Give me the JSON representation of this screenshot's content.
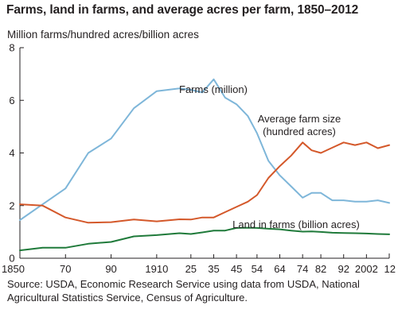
{
  "chart_data": {
    "type": "line",
    "title": "Farms, land in farms, and average acres per farm, 1850–2012",
    "ylabel": "Million farms/hundred acres/billion acres",
    "xlabel": "",
    "ylim": [
      0,
      8
    ],
    "yticks": [
      0,
      2,
      4,
      6,
      8
    ],
    "xlim": [
      1850,
      2012
    ],
    "x_tick_labels": [
      {
        "year": 1850,
        "label": "1850"
      },
      {
        "year": 1870,
        "label": "70"
      },
      {
        "year": 1890,
        "label": "90"
      },
      {
        "year": 1910,
        "label": "1910"
      },
      {
        "year": 1925,
        "label": "25"
      },
      {
        "year": 1935,
        "label": "35"
      },
      {
        "year": 1945,
        "label": "45"
      },
      {
        "year": 1954,
        "label": "54"
      },
      {
        "year": 1964,
        "label": "64"
      },
      {
        "year": 1974,
        "label": "74"
      },
      {
        "year": 1982,
        "label": "82"
      },
      {
        "year": 1992,
        "label": "92"
      },
      {
        "year": 2002,
        "label": "2002"
      },
      {
        "year": 2012,
        "label": "12"
      }
    ],
    "grid": false,
    "x": [
      1850,
      1860,
      1870,
      1880,
      1890,
      1900,
      1910,
      1920,
      1925,
      1930,
      1935,
      1940,
      1945,
      1950,
      1954,
      1959,
      1964,
      1969,
      1974,
      1978,
      1982,
      1987,
      1992,
      1997,
      2002,
      2007,
      2012
    ],
    "series": [
      {
        "name": "Farms (million)",
        "color": "#7eb6d9",
        "values": [
          1.45,
          2.05,
          2.65,
          4.0,
          4.55,
          5.7,
          6.35,
          6.45,
          6.4,
          6.3,
          6.8,
          6.1,
          5.85,
          5.4,
          4.75,
          3.7,
          3.15,
          2.73,
          2.3,
          2.48,
          2.48,
          2.2,
          2.2,
          2.15,
          2.15,
          2.2,
          2.1
        ]
      },
      {
        "name": "Average farm size\n(hundred acres)",
        "color": "#d4582a",
        "values": [
          2.05,
          2.0,
          1.55,
          1.35,
          1.37,
          1.47,
          1.4,
          1.48,
          1.47,
          1.55,
          1.55,
          1.75,
          1.95,
          2.15,
          2.4,
          3.05,
          3.5,
          3.9,
          4.4,
          4.1,
          4.0,
          4.2,
          4.4,
          4.3,
          4.4,
          4.18,
          4.3
        ]
      },
      {
        "name": "Land in farms (billion acres)",
        "color": "#1f7a3a",
        "values": [
          0.3,
          0.4,
          0.4,
          0.55,
          0.62,
          0.83,
          0.88,
          0.95,
          0.92,
          0.98,
          1.05,
          1.05,
          1.15,
          1.16,
          1.15,
          1.12,
          1.1,
          1.05,
          1.01,
          1.02,
          1.0,
          0.97,
          0.96,
          0.95,
          0.94,
          0.92,
          0.91
        ]
      }
    ]
  },
  "source_note": "Source: USDA, Economic Research Service using data from USDA, National Agricultural Statistics Service, Census of Agriculture."
}
